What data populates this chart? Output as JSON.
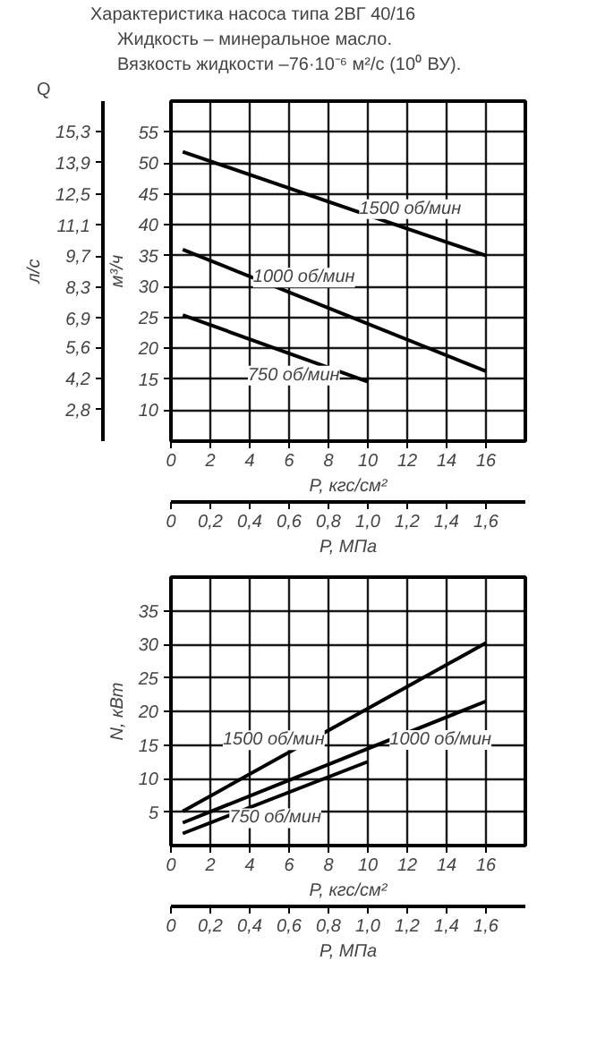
{
  "chart_data": [
    {
      "type": "line",
      "title": "Характеристика насоса типа 2ВГ 40/16",
      "subtitle": "Жидкость – минеральное масло.",
      "annotations": [
        "Вязкость жидкости –76·10⁻⁶ м²/с (10⁰ ВУ).",
        "Q"
      ],
      "xlabel": "P, кгс/см²",
      "x2label": "P, МПа",
      "ylabel": "м³/ч",
      "y2label": "л/с",
      "xlim": [
        0,
        18
      ],
      "xticks": [
        0,
        2,
        4,
        6,
        8,
        10,
        12,
        14,
        16
      ],
      "x2lim": [
        0,
        1.8
      ],
      "x2ticks": [
        0,
        {
          "value": 0.2,
          "label": "0,2"
        },
        {
          "value": 0.4,
          "label": "0,4"
        },
        {
          "value": 0.6,
          "label": "0,6"
        },
        {
          "value": 0.8,
          "label": "0,8"
        },
        {
          "value": 1.0,
          "label": "1,0"
        },
        {
          "value": 1.2,
          "label": "1,2"
        },
        {
          "value": 1.4,
          "label": "1,4"
        },
        {
          "value": 1.6,
          "label": "1,6"
        }
      ],
      "ylim": [
        5,
        60
      ],
      "yticks": [
        10,
        15,
        20,
        25,
        30,
        35,
        40,
        45,
        50,
        55
      ],
      "y2lim": [
        1.39,
        16.67
      ],
      "y2ticks": [
        {
          "value": 2.8,
          "label": "2,8"
        },
        {
          "value": 4.2,
          "label": "4,2"
        },
        {
          "value": 5.6,
          "label": "5,6"
        },
        {
          "value": 6.9,
          "label": "6,9"
        },
        {
          "value": 8.3,
          "label": "8,3"
        },
        {
          "value": 9.7,
          "label": "9,7"
        },
        {
          "value": 11.1,
          "label": "11,1"
        },
        {
          "value": 12.5,
          "label": "12,5"
        },
        {
          "value": 13.9,
          "label": "13,9"
        },
        {
          "value": 15.3,
          "label": "15,3"
        }
      ],
      "grid": true,
      "marker": "none",
      "line_style": "solid",
      "series": [
        {
          "name": "1500 об/мин",
          "color": "#000000",
          "x": [
            0.6,
            16
          ],
          "values": [
            51.8,
            35
          ]
        },
        {
          "name": "1000 об/мин",
          "color": "#000000",
          "x": [
            0.6,
            16
          ],
          "values": [
            36,
            16.3
          ]
        },
        {
          "name": "750 об/мин",
          "color": "#000000",
          "x": [
            0.6,
            10
          ],
          "values": [
            25.4,
            14.6
          ]
        }
      ]
    },
    {
      "type": "line",
      "ylabel": "N, кВт",
      "xlabel": "P, кгс/см²",
      "x2label": "P, МПа",
      "xlim": [
        0,
        18
      ],
      "xticks": [
        0,
        2,
        4,
        6,
        8,
        10,
        12,
        14,
        16
      ],
      "x2lim": [
        0,
        1.8
      ],
      "x2ticks": [
        0,
        {
          "value": 0.2,
          "label": "0,2"
        },
        {
          "value": 0.4,
          "label": "0,4"
        },
        {
          "value": 0.6,
          "label": "0,6"
        },
        {
          "value": 0.8,
          "label": "0,8"
        },
        {
          "value": 1.0,
          "label": "1,0"
        },
        {
          "value": 1.2,
          "label": "1,2"
        },
        {
          "value": 1.4,
          "label": "1,4"
        },
        {
          "value": 1.6,
          "label": "1,6"
        }
      ],
      "ylim": [
        0,
        40
      ],
      "yticks": [
        5,
        10,
        15,
        20,
        25,
        30,
        35
      ],
      "grid": true,
      "marker": "none",
      "line_style": "solid",
      "series": [
        {
          "name": "1500 об/мин",
          "color": "#000000",
          "x": [
            0.6,
            16
          ],
          "values": [
            5.1,
            30.2
          ]
        },
        {
          "name": "1000 об/мин",
          "color": "#000000",
          "x": [
            0.6,
            16
          ],
          "values": [
            3.4,
            21.5
          ]
        },
        {
          "name": "750 об/мин",
          "color": "#000000",
          "x": [
            0.6,
            10
          ],
          "values": [
            1.8,
            12.5
          ]
        }
      ]
    }
  ]
}
